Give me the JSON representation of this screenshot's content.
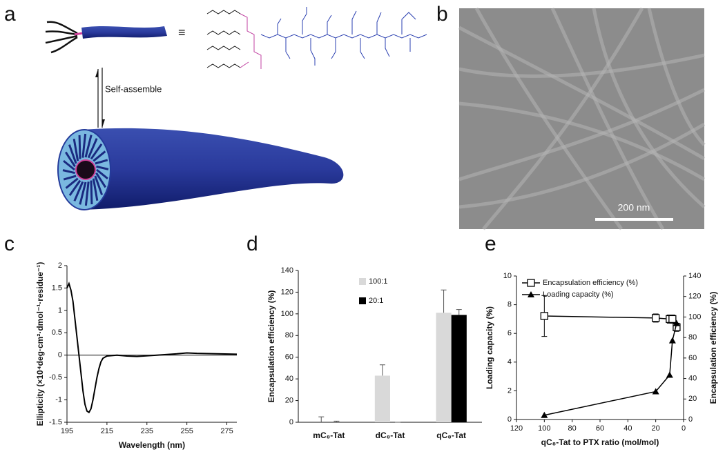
{
  "panel_labels": [
    "a",
    "b",
    "c",
    "d",
    "e"
  ],
  "schematic": {
    "equiv": "≡",
    "arrow_label": "Self-assemble"
  },
  "micrograph": {
    "scale_bar": "200 nm"
  },
  "chart_data": [
    {
      "type": "line",
      "xlabel": "Wavelength (nm)",
      "ylabel": "Ellipticity (×10⁴deg·cm²·dmol⁻¹·residue⁻¹)",
      "x": [
        195,
        196,
        197,
        198,
        199,
        200,
        201,
        202,
        203,
        204,
        205,
        206,
        207,
        208,
        209,
        210,
        211,
        212,
        213,
        215,
        220,
        225,
        230,
        240,
        250,
        255,
        260,
        270,
        280
      ],
      "values": [
        1.5,
        1.6,
        1.45,
        1.2,
        0.8,
        0.4,
        0,
        -0.4,
        -0.8,
        -1.1,
        -1.25,
        -1.28,
        -1.2,
        -1.0,
        -0.75,
        -0.5,
        -0.3,
        -0.15,
        -0.07,
        -0.02,
        0,
        -0.02,
        -0.03,
        0,
        0.03,
        0.05,
        0.04,
        0.03,
        0.02
      ],
      "color": "#000000",
      "xlim": [
        195,
        280
      ],
      "xticks": [
        195,
        215,
        235,
        255,
        275
      ],
      "ylim": [
        -1.5,
        2
      ],
      "yticks": [
        -1.5,
        -1,
        -0.5,
        0,
        0.5,
        1,
        1.5,
        2
      ]
    },
    {
      "type": "bar",
      "ylabel": "Encapsulation efficiency (%)",
      "categories": [
        "mC₈-Tat",
        "dC₈-Tat",
        "qC₈-Tat"
      ],
      "series": [
        {
          "name": "100:1",
          "color": "#d9d9d9",
          "values": [
            0,
            43,
            101
          ],
          "errors": [
            5,
            10,
            21
          ]
        },
        {
          "name": "20:1",
          "color": "#000000",
          "values": [
            0,
            0,
            99
          ],
          "errors": [
            1,
            0,
            5
          ]
        }
      ],
      "ylim": [
        0,
        140
      ],
      "yticks": [
        0,
        20,
        40,
        60,
        80,
        100,
        120,
        140
      ],
      "legend": "upper center"
    },
    {
      "type": "line",
      "xlabel": "qC₈-Tat to PTX ratio (mol/mol)",
      "ylabel": "Loading capacity (%)",
      "y2label": "Encapsulation efficiency (%)",
      "x": [
        100,
        20,
        10,
        8,
        5
      ],
      "series": [
        {
          "name": "Encapsulation efficiency (%)",
          "color": "#000000",
          "marker": "square-open",
          "axis": "y2",
          "values": [
            101,
            99,
            98,
            98,
            90
          ],
          "errors": [
            20,
            4,
            4,
            4,
            4
          ]
        },
        {
          "name": "Loading capacity (%)",
          "color": "#000000",
          "marker": "triangle",
          "values": [
            0.3,
            1.95,
            3.1,
            5.5,
            6.7
          ]
        }
      ],
      "xlim": [
        120,
        0
      ],
      "xticks": [
        120,
        100,
        80,
        60,
        40,
        20,
        0
      ],
      "ylim": [
        0,
        10
      ],
      "yticks": [
        0,
        2,
        4,
        6,
        8,
        10
      ],
      "y2lim": [
        0,
        140
      ],
      "y2ticks": [
        0,
        20,
        40,
        60,
        80,
        100,
        120,
        140
      ],
      "legend": "upper left"
    }
  ]
}
